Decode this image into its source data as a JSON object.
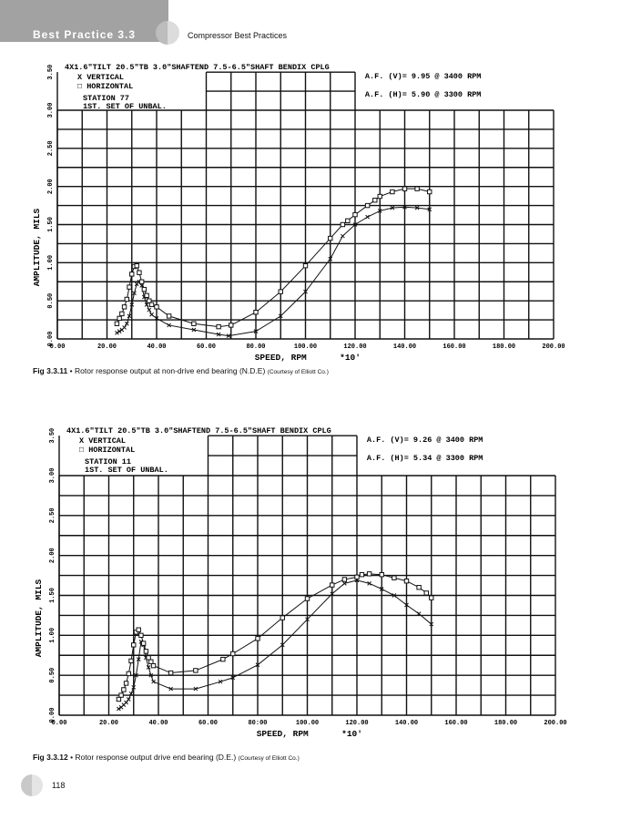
{
  "header": {
    "section": "Best Practice 3.3",
    "running_title": "Compressor Best Practices"
  },
  "footer": {
    "page_number": "118"
  },
  "chart_data": [
    {
      "type": "line",
      "title": "4X1.6\"TILT 20.5\"TB 3.0\"SHAFTEND 7.5-6.5\"SHAFT BENDIX CPLG",
      "legend": [
        "X  VERTICAL",
        "□  HORIZONTAL"
      ],
      "station": "STATION 77",
      "note": "1ST. SET OF UNBAL.",
      "af_v": "A.F.  (V)=  9.95   @ 3400   RPM",
      "af_h": "A.F.  (H)=  5.90   @ 3300   RPM",
      "xlabel": "SPEED, RPM",
      "xunit": "*10'",
      "ylabel": "AMPLITUDE, MILS",
      "xlim": [
        0,
        200
      ],
      "ylim": [
        0,
        3.5
      ],
      "xticks": [
        "0.00",
        "20.00",
        "40.00",
        "60.00",
        "80.00",
        "100.00",
        "120.00",
        "140.00",
        "160.00",
        "180.00",
        "200.00"
      ],
      "yticks": [
        "0.00",
        "0.50",
        "1.00",
        "1.50",
        "2.00",
        "2.50",
        "3.00",
        "3.50"
      ],
      "grid": true,
      "series": [
        {
          "name": "VERTICAL",
          "marker": "x",
          "x": [
            24,
            25,
            26,
            27,
            28,
            29,
            30,
            31,
            32,
            33,
            34,
            35,
            36,
            37,
            38,
            40,
            45,
            55,
            65,
            69,
            80,
            90,
            100,
            110,
            115,
            120,
            125,
            130,
            135,
            140,
            145,
            150
          ],
          "y": [
            0.08,
            0.1,
            0.12,
            0.15,
            0.2,
            0.3,
            0.45,
            0.6,
            0.72,
            0.75,
            0.7,
            0.55,
            0.45,
            0.38,
            0.32,
            0.27,
            0.18,
            0.12,
            0.06,
            0.04,
            0.1,
            0.3,
            0.62,
            1.05,
            1.35,
            1.5,
            1.6,
            1.68,
            1.72,
            1.73,
            1.72,
            1.7
          ]
        },
        {
          "name": "HORIZONTAL",
          "marker": "square",
          "x": [
            24,
            25,
            26,
            27,
            28,
            29,
            30,
            31,
            32,
            33,
            34,
            35,
            36,
            37,
            38,
            40,
            45,
            55,
            65,
            70,
            80,
            90,
            100,
            110,
            115,
            117,
            120,
            125,
            128,
            130,
            135,
            140,
            145,
            150
          ],
          "y": [
            0.2,
            0.27,
            0.33,
            0.42,
            0.52,
            0.68,
            0.85,
            0.95,
            0.96,
            0.87,
            0.75,
            0.65,
            0.57,
            0.5,
            0.45,
            0.42,
            0.3,
            0.2,
            0.16,
            0.18,
            0.35,
            0.62,
            0.96,
            1.32,
            1.5,
            1.55,
            1.63,
            1.75,
            1.82,
            1.87,
            1.93,
            1.97,
            1.97,
            1.93
          ]
        }
      ]
    },
    {
      "type": "line",
      "title": "4X1.6\"TILT 20.5\"TB 3.0\"SHAFTEND 7.5-6.5\"SHAFT BENDIX CPLG",
      "legend": [
        "X  VERTICAL",
        "□  HORIZONTAL"
      ],
      "station": "STATION 11",
      "note": "1ST. SET OF UNBAL.",
      "af_v": "A.F.  (V)=  9.26   @ 3400   RPM",
      "af_h": "A.F.  (H)=  5.34   @ 3300   RPM",
      "xlabel": "SPEED, RPM",
      "xunit": "*10'",
      "ylabel": "AMPLITUDE, MILS",
      "xlim": [
        0,
        200
      ],
      "ylim": [
        0,
        3.5
      ],
      "xticks": [
        "0.00",
        "20.00",
        "40.00",
        "60.00",
        "80:00",
        "100.00",
        "120.00",
        "140.00",
        "160.00",
        "180.00",
        "200.00"
      ],
      "yticks": [
        "0.00",
        "0.50",
        "1.00",
        "1.50",
        "2.00",
        "2.50",
        "3.00",
        "3.50"
      ],
      "grid": true,
      "series": [
        {
          "name": "VERTICAL",
          "marker": "x",
          "x": [
            24,
            25,
            26,
            27,
            28,
            29,
            30,
            31,
            32,
            33,
            34,
            35,
            36,
            37,
            38,
            45,
            55,
            65,
            70,
            80,
            90,
            100,
            110,
            115,
            120,
            125,
            130,
            135,
            140,
            145,
            150
          ],
          "y": [
            0.08,
            0.1,
            0.13,
            0.16,
            0.2,
            0.27,
            0.35,
            0.5,
            0.7,
            0.92,
            0.88,
            0.72,
            0.6,
            0.5,
            0.42,
            0.33,
            0.33,
            0.42,
            0.47,
            0.63,
            0.88,
            1.2,
            1.52,
            1.65,
            1.69,
            1.65,
            1.58,
            1.5,
            1.38,
            1.27,
            1.14
          ]
        },
        {
          "name": "HORIZONTAL",
          "marker": "square",
          "x": [
            24,
            25,
            26,
            27,
            28,
            29,
            30,
            31,
            32,
            33,
            34,
            35,
            36,
            37,
            38,
            45,
            55,
            66,
            70,
            80,
            90,
            100,
            110,
            115,
            120,
            122,
            125,
            130,
            135,
            140,
            145,
            148,
            150
          ],
          "y": [
            0.2,
            0.25,
            0.32,
            0.4,
            0.52,
            0.68,
            0.88,
            1.04,
            1.07,
            1.0,
            0.9,
            0.8,
            0.72,
            0.67,
            0.62,
            0.53,
            0.56,
            0.7,
            0.77,
            0.96,
            1.22,
            1.46,
            1.63,
            1.7,
            1.73,
            1.76,
            1.77,
            1.76,
            1.72,
            1.68,
            1.6,
            1.53,
            1.47
          ]
        }
      ]
    }
  ],
  "captions": [
    {
      "label": "Fig 3.3.11",
      "text": "Rotor response output at non-drive end bearing (N.D.E)",
      "credit": "(Courtesy of Elliott Co.)"
    },
    {
      "label": "Fig 3.3.12",
      "text": "Rotor response output drive end bearing (D.E.)",
      "credit": "(Courtesy of Elliott Co.)"
    }
  ]
}
